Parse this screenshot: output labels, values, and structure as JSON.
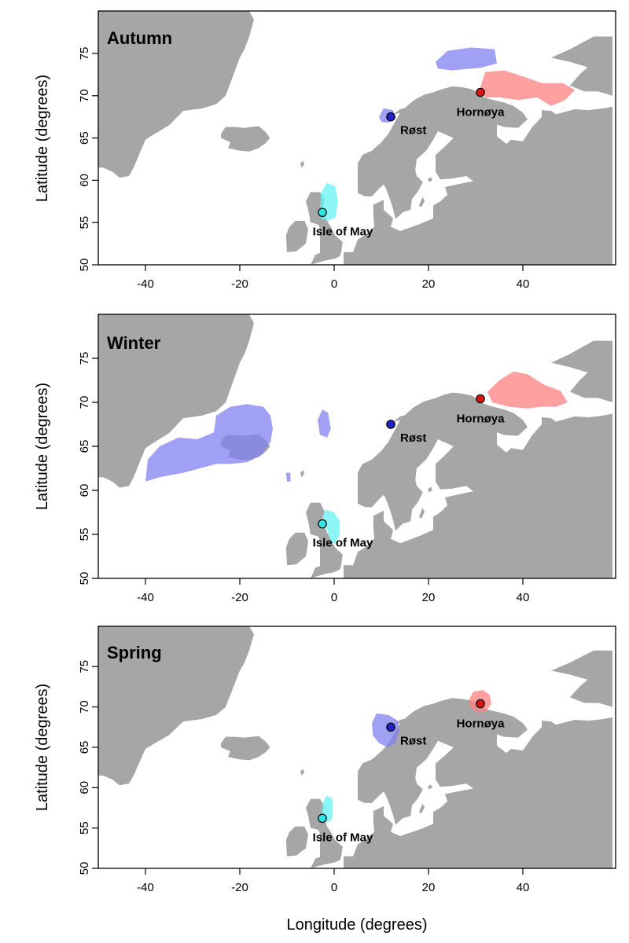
{
  "figure": {
    "x_axis_title": "Longitude (degrees)",
    "y_axis_title": "Latitude (degrees)"
  },
  "colors": {
    "land": "#a6a6a6",
    "rost": "#2222cc",
    "rost_area": "#8080f0",
    "hornoya": "#dd1111",
    "hornoya_area": "#ff8080",
    "isle_of_may": "#33e5e5",
    "isle_of_may_area": "#66f2f2"
  },
  "axes": {
    "x_ticks": [
      -40,
      -20,
      0,
      20,
      40
    ],
    "y_ticks": [
      50,
      55,
      60,
      65,
      70,
      75
    ],
    "x_range": [
      -51,
      59
    ],
    "y_range": [
      50,
      80
    ]
  },
  "colonies": [
    {
      "id": "rost",
      "name": "Røst",
      "lon": 12.0,
      "lat": 67.5
    },
    {
      "id": "hornoya",
      "name": "Hornøya",
      "lon": 31.0,
      "lat": 70.4
    },
    {
      "id": "isle_of_may",
      "name": "Isle of May",
      "lon": -2.5,
      "lat": 56.2
    }
  ],
  "panels": [
    {
      "season": "Autumn",
      "areas": [
        {
          "colony": "rost",
          "polygon": [
            [
              21.5,
              74.0
            ],
            [
              24,
              75.3
            ],
            [
              29,
              75.7
            ],
            [
              34,
              75.5
            ],
            [
              34.5,
              73.8
            ],
            [
              31,
              73.3
            ],
            [
              25,
              73.0
            ],
            [
              22,
              73.2
            ]
          ]
        },
        {
          "colony": "rost",
          "polygon": [
            [
              9.5,
              67.5
            ],
            [
              10.5,
              68.5
            ],
            [
              12.5,
              68.3
            ],
            [
              13,
              67.3
            ],
            [
              11.5,
              66.8
            ],
            [
              10,
              66.9
            ]
          ]
        },
        {
          "colony": "hornoya",
          "polygon": [
            [
              31.0,
              71.0
            ],
            [
              32,
              72.8
            ],
            [
              36,
              73.0
            ],
            [
              40,
              72.3
            ],
            [
              44,
              71.5
            ],
            [
              48.5,
              71.5
            ],
            [
              51,
              70.7
            ],
            [
              49,
              69.5
            ],
            [
              46,
              68.8
            ],
            [
              43,
              69.8
            ],
            [
              39,
              69.5
            ],
            [
              35,
              69.8
            ],
            [
              32,
              69.8
            ]
          ]
        },
        {
          "colony": "isle_of_may",
          "polygon": [
            [
              -3,
              56.3
            ],
            [
              -2.8,
              58.5
            ],
            [
              -1.5,
              59.7
            ],
            [
              0.2,
              59.3
            ],
            [
              0.8,
              57.5
            ],
            [
              0.3,
              55.6
            ],
            [
              -1.3,
              55.2
            ],
            [
              -2.8,
              55.4
            ]
          ]
        }
      ]
    },
    {
      "season": "Winter",
      "areas": [
        {
          "colony": "rost",
          "polygon": [
            [
              -40,
              61.0
            ],
            [
              -39.5,
              63.5
            ],
            [
              -37,
              65.0
            ],
            [
              -33,
              66.0
            ],
            [
              -29,
              65.8
            ],
            [
              -25.5,
              66.6
            ],
            [
              -25,
              68.5
            ],
            [
              -22,
              69.5
            ],
            [
              -18.5,
              69.8
            ],
            [
              -15,
              69.5
            ],
            [
              -13.5,
              68.5
            ],
            [
              -13,
              67.0
            ],
            [
              -13.5,
              65.5
            ],
            [
              -15.5,
              64.0
            ],
            [
              -18.5,
              63.2
            ],
            [
              -22,
              63.0
            ],
            [
              -25,
              63.0
            ],
            [
              -28.5,
              62.5
            ],
            [
              -32,
              62.0
            ],
            [
              -37,
              61.5
            ]
          ]
        },
        {
          "colony": "rost",
          "polygon": [
            [
              -3,
              66.3
            ],
            [
              -3.5,
              68.0
            ],
            [
              -2.5,
              69.2
            ],
            [
              -1.3,
              68.8
            ],
            [
              -0.7,
              67.0
            ],
            [
              -1.5,
              66.0
            ]
          ]
        },
        {
          "colony": "rost",
          "polygon": [
            [
              -10,
              61.0
            ],
            [
              -10.2,
              62.0
            ],
            [
              -9.3,
              62.0
            ],
            [
              -9.2,
              61.0
            ]
          ]
        },
        {
          "colony": "hornoya",
          "polygon": [
            [
              32.5,
              71.2
            ],
            [
              35,
              72.5
            ],
            [
              38,
              73.5
            ],
            [
              41,
              73.2
            ],
            [
              44.5,
              72.0
            ],
            [
              48,
              71.3
            ],
            [
              49.5,
              70.0
            ],
            [
              47,
              69.5
            ],
            [
              44,
              69.5
            ],
            [
              41,
              69.3
            ],
            [
              37,
              69.5
            ],
            [
              33.5,
              70.0
            ]
          ]
        },
        {
          "colony": "isle_of_may",
          "polygon": [
            [
              -2.5,
              57.0
            ],
            [
              -1.8,
              57.8
            ],
            [
              0,
              57.5
            ],
            [
              1.2,
              56.5
            ],
            [
              1.2,
              55.0
            ],
            [
              0.2,
              54.0
            ],
            [
              -0.8,
              54.2
            ],
            [
              -1.5,
              55.5
            ]
          ]
        }
      ]
    },
    {
      "season": "Spring",
      "areas": [
        {
          "colony": "rost",
          "polygon": [
            [
              8.0,
              68.0
            ],
            [
              9.0,
              69.2
            ],
            [
              11.5,
              69.0
            ],
            [
              13.5,
              68.3
            ],
            [
              13.8,
              67.0
            ],
            [
              13,
              65.5
            ],
            [
              11.5,
              65.0
            ],
            [
              9.5,
              65.5
            ],
            [
              8.2,
              66.5
            ]
          ]
        },
        {
          "colony": "hornoya",
          "polygon": [
            [
              28.5,
              70.8
            ],
            [
              29.5,
              71.9
            ],
            [
              31.5,
              72.1
            ],
            [
              33,
              71.5
            ],
            [
              33.3,
              70.3
            ],
            [
              32,
              69.4
            ],
            [
              30,
              69.4
            ],
            [
              28.8,
              70.0
            ]
          ]
        },
        {
          "colony": "isle_of_may",
          "polygon": [
            [
              -2.7,
              56.7
            ],
            [
              -2.5,
              58.0
            ],
            [
              -1.6,
              59.0
            ],
            [
              -0.4,
              58.7
            ],
            [
              -0.3,
              57.2
            ],
            [
              -0.5,
              56.0
            ],
            [
              -1.8,
              55.7
            ]
          ]
        }
      ]
    }
  ]
}
